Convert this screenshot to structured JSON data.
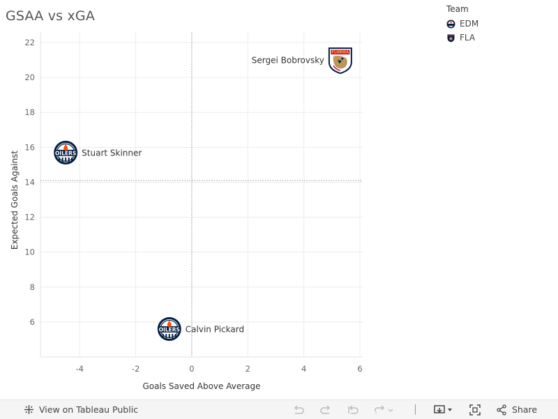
{
  "title": "GSAA vs xGA",
  "legend": {
    "title": "Team",
    "items": [
      {
        "label": "EDM",
        "color": "#041E42",
        "accent": "#FF4C00"
      },
      {
        "label": "FLA",
        "color": "#C8102E",
        "accent": "#041E42"
      }
    ]
  },
  "chart_data": {
    "type": "scatter",
    "xlabel": "Goals Saved Above Average",
    "ylabel": "Expected Goals Against",
    "xlim": [
      -5.4,
      6.1
    ],
    "ylim": [
      4.0,
      22.6
    ],
    "xticks": [
      -4,
      -2,
      0,
      2,
      4,
      6
    ],
    "yticks": [
      6,
      8,
      10,
      12,
      14,
      16,
      18,
      20,
      22
    ],
    "grid": true,
    "reference_lines": {
      "x": 0,
      "y": 14.1
    },
    "points": [
      {
        "name": "Sergei Bobrovsky",
        "team": "FLA",
        "x": 5.3,
        "y": 21.0
      },
      {
        "name": "Stuart Skinner",
        "team": "EDM",
        "x": -4.5,
        "y": 15.7
      },
      {
        "name": "Calvin Pickard",
        "team": "EDM",
        "x": -0.8,
        "y": 5.6
      }
    ]
  },
  "toolbar": {
    "view_label": "View on Tableau Public",
    "share_label": "Share"
  }
}
